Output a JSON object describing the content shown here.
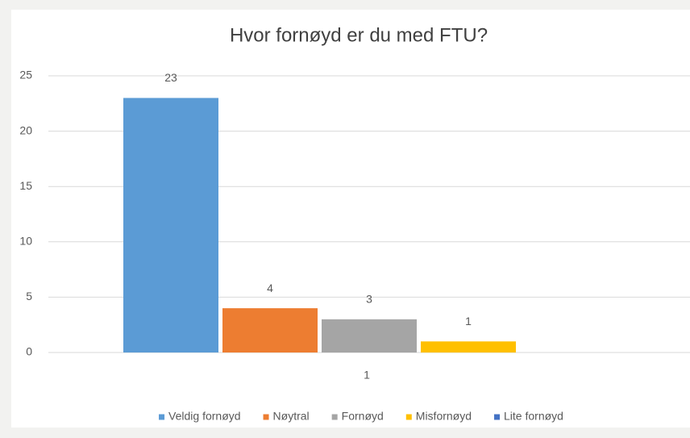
{
  "chart_data": {
    "type": "bar",
    "title": "Hvor fornøyd er du med FTU?",
    "categories": [
      "1"
    ],
    "series": [
      {
        "name": "Veldig fornøyd",
        "color": "#5b9bd5",
        "values": [
          23
        ]
      },
      {
        "name": "Nøytral",
        "color": "#ed7d31",
        "values": [
          4
        ]
      },
      {
        "name": "Fornøyd",
        "color": "#a5a5a5",
        "values": [
          3
        ]
      },
      {
        "name": "Misfornøyd",
        "color": "#ffc000",
        "values": [
          1
        ]
      },
      {
        "name": "Lite fornøyd",
        "color": "#4472c4",
        "values": [
          null
        ]
      }
    ],
    "ylim": [
      0,
      25
    ],
    "yticks": [
      0,
      5,
      10,
      15,
      20,
      25
    ],
    "grid": true,
    "legend": "bottom"
  }
}
